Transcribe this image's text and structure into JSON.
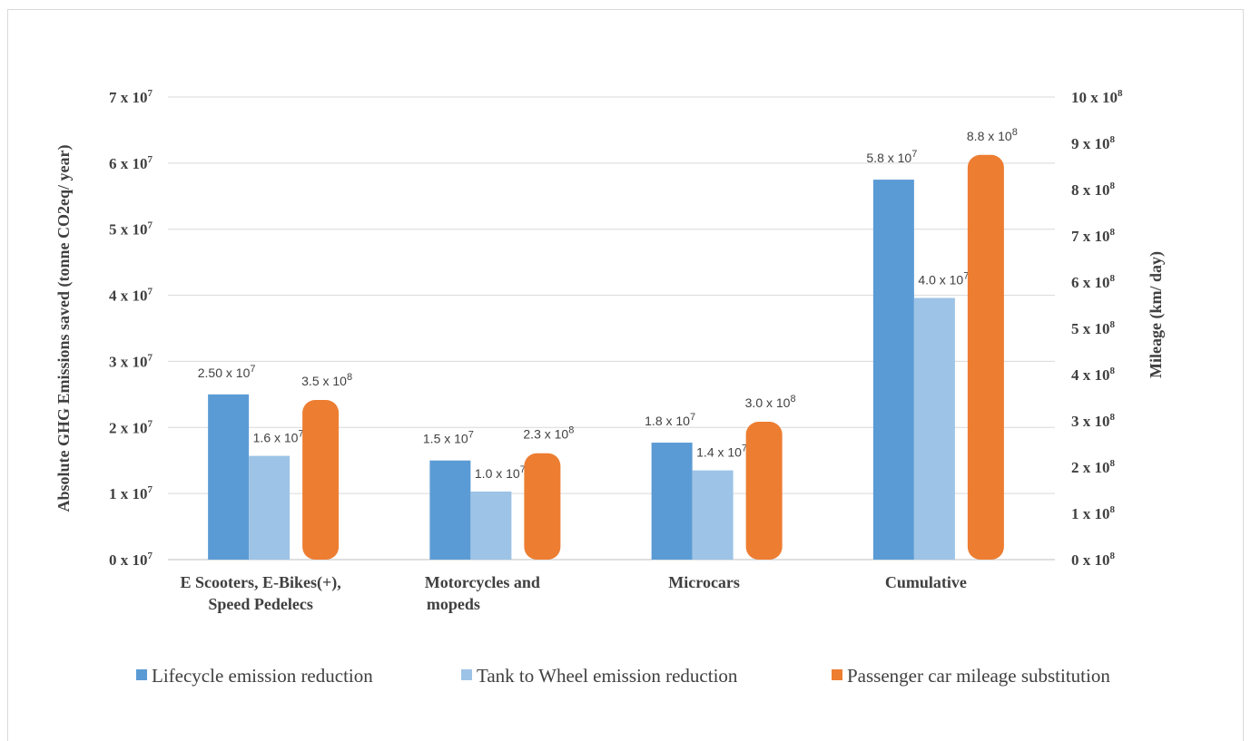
{
  "chart_data": {
    "type": "bar",
    "title": "",
    "categories": [
      [
        "E Scooters, E-Bikes(+),",
        "Speed Pedelecs"
      ],
      [
        "Motorcycles and",
        "mopeds"
      ],
      [
        "Microcars"
      ],
      [
        "Cumulative"
      ]
    ],
    "ylabel": "Absolute GHG Emissions saved (tonne CO2eq/ year)",
    "y2label": "Mileage (km/ day)",
    "ylim": [
      0,
      70000000
    ],
    "y2lim": [
      0,
      1000000000
    ],
    "y_ticks": [
      {
        "value": 0,
        "base": "0 x 10",
        "exp": "7"
      },
      {
        "value": 10000000,
        "base": "1 x 10",
        "exp": "7"
      },
      {
        "value": 20000000,
        "base": "2 x 10",
        "exp": "7"
      },
      {
        "value": 30000000,
        "base": "3 x 10",
        "exp": "7"
      },
      {
        "value": 40000000,
        "base": "4 x 10",
        "exp": "7"
      },
      {
        "value": 50000000,
        "base": "5 x 10",
        "exp": "7"
      },
      {
        "value": 60000000,
        "base": "6 x 10",
        "exp": "7"
      },
      {
        "value": 70000000,
        "base": "7 x 10",
        "exp": "7"
      }
    ],
    "y2_ticks": [
      {
        "value": 0,
        "base": "0 x 10",
        "exp": "8"
      },
      {
        "value": 100000000,
        "base": "1 x 10",
        "exp": "8"
      },
      {
        "value": 200000000,
        "base": "2 x 10",
        "exp": "8"
      },
      {
        "value": 300000000,
        "base": "3 x 10",
        "exp": "8"
      },
      {
        "value": 400000000,
        "base": "4 x 10",
        "exp": "8"
      },
      {
        "value": 500000000,
        "base": "5 x 10",
        "exp": "8"
      },
      {
        "value": 600000000,
        "base": "6 x 10",
        "exp": "8"
      },
      {
        "value": 700000000,
        "base": "7 x 10",
        "exp": "8"
      },
      {
        "value": 800000000,
        "base": "8 x 10",
        "exp": "8"
      },
      {
        "value": 900000000,
        "base": "9 x 10",
        "exp": "8"
      },
      {
        "value": 1000000000,
        "base": "10 x 10",
        "exp": "8"
      }
    ],
    "series": [
      {
        "name": "Lifecycle emission reduction",
        "axis": "left",
        "color": "#5b9bd5",
        "values": [
          25000000,
          15000000,
          17700000,
          57500000
        ],
        "labels": [
          {
            "base": "2.50 x 10",
            "exp": "7"
          },
          {
            "base": "1.5 x 10",
            "exp": "7"
          },
          {
            "base": "1.8 x 10",
            "exp": "7"
          },
          {
            "base": "5.8 x 10",
            "exp": "7"
          }
        ]
      },
      {
        "name": "Tank to Wheel emission reduction",
        "axis": "left",
        "color": "#9dc3e6",
        "values": [
          15700000,
          10300000,
          13500000,
          39600000
        ],
        "labels": [
          {
            "base": "1.6 x 10",
            "exp": "7"
          },
          {
            "base": "1.0 x 10",
            "exp": "7"
          },
          {
            "base": "1.4 x 10",
            "exp": "7"
          },
          {
            "base": "4.0 x 10",
            "exp": "7"
          }
        ]
      },
      {
        "name": "Passenger car mileage substitution",
        "axis": "right",
        "color": "#ed7d31",
        "values": [
          345000000,
          230000000,
          298000000,
          875000000
        ],
        "labels": [
          {
            "base": "3.5 x 10",
            "exp": "8"
          },
          {
            "base": "2.3 x 10",
            "exp": "8"
          },
          {
            "base": "3.0 x 10",
            "exp": "8"
          },
          {
            "base": "8.8 x 10",
            "exp": "8"
          }
        ]
      }
    ],
    "legend_position": "bottom",
    "grid": true
  }
}
